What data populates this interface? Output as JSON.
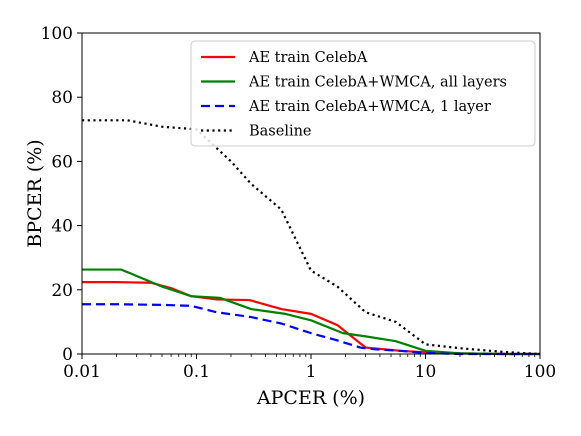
{
  "chart_data": {
    "type": "line",
    "title": "",
    "xlabel": "APCER (%)",
    "ylabel": "BPCER (%)",
    "xscale": "log",
    "xlim": [
      0.01,
      100
    ],
    "ylim": [
      0,
      100
    ],
    "xticks": [
      0.01,
      0.1,
      1,
      10,
      100
    ],
    "xtick_labels": [
      "0.01",
      "0.1",
      "1",
      "10",
      "100"
    ],
    "yticks": [
      0,
      20,
      40,
      60,
      80,
      100
    ],
    "ytick_labels": [
      "0",
      "20",
      "40",
      "60",
      "80",
      "100"
    ],
    "grid": false,
    "legend_position": "top-right",
    "series": [
      {
        "name": "AE train CelebA",
        "color": "#ff0000",
        "style": "solid",
        "x": [
          0.01,
          0.02,
          0.04,
          0.06,
          0.09,
          0.15,
          0.29,
          0.55,
          1.0,
          1.7,
          3.0,
          6.0,
          10,
          20,
          50,
          100
        ],
        "y": [
          22.4,
          22.4,
          22.2,
          20.5,
          18.0,
          17.0,
          16.8,
          14.0,
          12.5,
          9.0,
          2.0,
          1.0,
          0.5,
          0.2,
          0.0,
          0.0
        ]
      },
      {
        "name": "AE train CelebA+WMCA, all layers",
        "color": "#008000",
        "style": "solid",
        "x": [
          0.01,
          0.022,
          0.05,
          0.09,
          0.16,
          0.3,
          0.6,
          1.0,
          1.9,
          3.0,
          5.5,
          10,
          20,
          50,
          100
        ],
        "y": [
          26.3,
          26.3,
          21.0,
          18.0,
          17.5,
          14.0,
          12.5,
          10.5,
          6.5,
          5.5,
          4.0,
          1.0,
          0.2,
          0.0,
          0.0
        ]
      },
      {
        "name": "AE train CelebA+WMCA, 1 layer",
        "color": "#0000ff",
        "style": "dashed",
        "x": [
          0.01,
          0.02,
          0.05,
          0.09,
          0.15,
          0.3,
          0.55,
          1.0,
          1.6,
          2.7,
          3.5,
          6.0,
          10,
          20,
          50,
          100
        ],
        "y": [
          15.5,
          15.5,
          15.3,
          15.0,
          13.0,
          11.5,
          9.5,
          6.5,
          4.5,
          2.0,
          1.5,
          1.0,
          0.3,
          0.0,
          0.0,
          0.0
        ]
      },
      {
        "name": "Baseline",
        "color": "#000000",
        "style": "dotted",
        "x": [
          0.01,
          0.025,
          0.05,
          0.1,
          0.2,
          0.3,
          0.55,
          1.0,
          1.7,
          3.0,
          5.5,
          10,
          20,
          50,
          100
        ],
        "y": [
          72.8,
          72.8,
          70.8,
          70.0,
          60.0,
          53.0,
          45.0,
          26.0,
          21.0,
          13.0,
          10.0,
          3.0,
          1.8,
          0.6,
          0.0
        ]
      }
    ]
  }
}
